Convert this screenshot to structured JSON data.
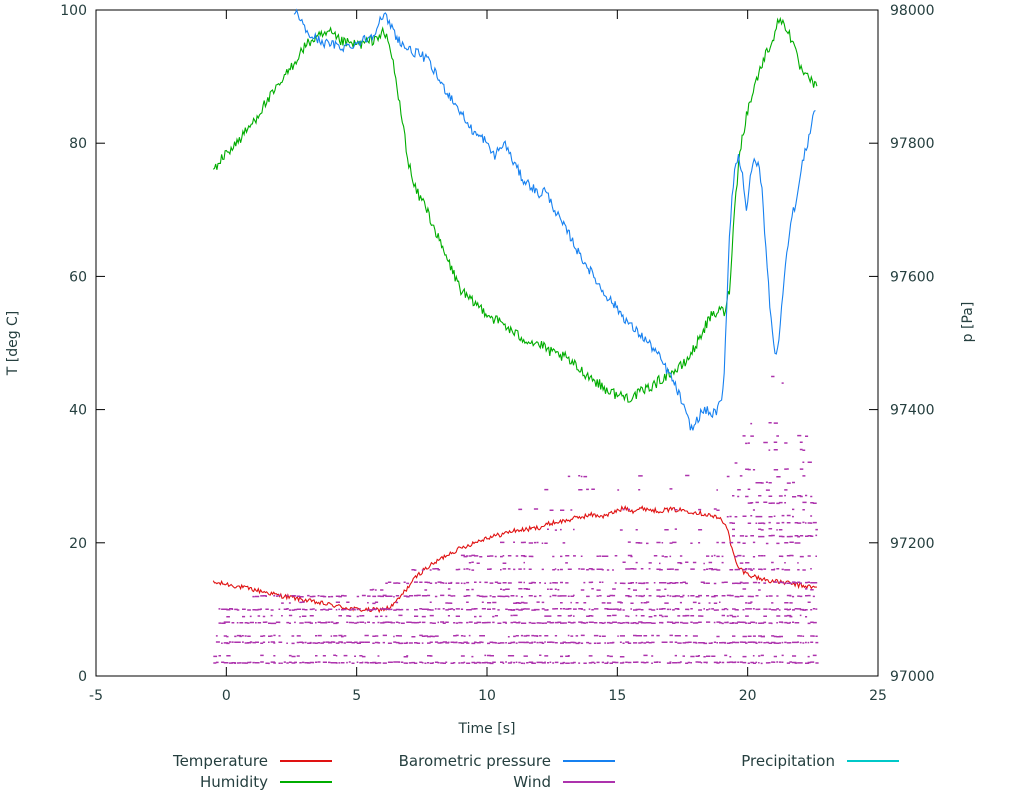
{
  "chart_data": {
    "type": "line",
    "title": "",
    "xlabel": "Time [s]",
    "ylabel_left": "T [deg C]",
    "ylabel_right": "p [Pa]",
    "xlim": [
      -5,
      25
    ],
    "ylim_left": [
      0,
      100
    ],
    "ylim_right": [
      97000,
      98000
    ],
    "x_ticks": [
      -5,
      0,
      5,
      10,
      15,
      20,
      25
    ],
    "y_ticks_left": [
      0,
      20,
      40,
      60,
      80,
      100
    ],
    "y_ticks_right": [
      97000,
      97200,
      97400,
      97600,
      97800,
      98000
    ],
    "grid": false,
    "legend_position": "bottom",
    "series": [
      {
        "name": "Temperature",
        "color": "#e01212",
        "axis": "left",
        "noise": 0.35,
        "points": [
          [
            -0.5,
            14
          ],
          [
            0,
            13.8
          ],
          [
            0.5,
            13.4
          ],
          [
            1,
            13
          ],
          [
            1.5,
            12.6
          ],
          [
            2,
            12.1
          ],
          [
            2.5,
            11.8
          ],
          [
            3,
            11.4
          ],
          [
            3.5,
            11
          ],
          [
            4,
            10.7
          ],
          [
            4.5,
            10.3
          ],
          [
            5,
            10
          ],
          [
            5.5,
            9.9
          ],
          [
            6,
            10
          ],
          [
            6.3,
            10.3
          ],
          [
            6.6,
            11.5
          ],
          [
            7,
            13.5
          ],
          [
            7.3,
            15
          ],
          [
            7.6,
            16
          ],
          [
            8,
            17
          ],
          [
            8.5,
            18.3
          ],
          [
            9,
            19.2
          ],
          [
            9.5,
            20
          ],
          [
            10,
            20.8
          ],
          [
            10.5,
            21.2
          ],
          [
            11,
            21.8
          ],
          [
            11.5,
            22
          ],
          [
            12,
            22.3
          ],
          [
            12.5,
            23
          ],
          [
            13,
            23.3
          ],
          [
            13.5,
            23.8
          ],
          [
            14,
            24.2
          ],
          [
            14.5,
            24
          ],
          [
            15,
            24.8
          ],
          [
            15.3,
            25.3
          ],
          [
            15.6,
            24.8
          ],
          [
            16,
            25.2
          ],
          [
            16.5,
            24.8
          ],
          [
            17,
            25
          ],
          [
            17.5,
            24.9
          ],
          [
            18,
            24.6
          ],
          [
            18.5,
            24.2
          ],
          [
            19,
            23.5
          ],
          [
            19.2,
            22.5
          ],
          [
            19.4,
            19
          ],
          [
            19.6,
            16.5
          ],
          [
            19.8,
            15.8
          ],
          [
            20,
            15.3
          ],
          [
            20.5,
            14.6
          ],
          [
            21,
            14.2
          ],
          [
            21.5,
            14
          ],
          [
            22,
            13.6
          ],
          [
            22.4,
            13.4
          ],
          [
            22.7,
            13.2
          ]
        ]
      },
      {
        "name": "Humidity",
        "color": "#00ad00",
        "axis": "left",
        "noise": 0.8,
        "points": [
          [
            -0.5,
            76
          ],
          [
            0,
            78.5
          ],
          [
            0.5,
            80.5
          ],
          [
            1,
            83
          ],
          [
            1.5,
            86
          ],
          [
            2,
            88.5
          ],
          [
            2.5,
            91.5
          ],
          [
            3,
            94.5
          ],
          [
            3.3,
            95.5
          ],
          [
            3.6,
            96
          ],
          [
            4,
            96.5
          ],
          [
            4.3,
            95.5
          ],
          [
            4.6,
            95
          ],
          [
            5,
            94.8
          ],
          [
            5.3,
            95
          ],
          [
            5.6,
            95.5
          ],
          [
            6,
            96.5
          ],
          [
            6.2,
            95.5
          ],
          [
            6.4,
            92
          ],
          [
            6.6,
            87
          ],
          [
            6.8,
            82
          ],
          [
            7,
            77
          ],
          [
            7.2,
            73.5
          ],
          [
            7.4,
            72
          ],
          [
            7.6,
            71
          ],
          [
            8,
            67
          ],
          [
            8.3,
            64
          ],
          [
            8.6,
            61.5
          ],
          [
            9,
            58
          ],
          [
            9.3,
            56.5
          ],
          [
            9.6,
            55.8
          ],
          [
            10,
            54.5
          ],
          [
            10.3,
            53.5
          ],
          [
            10.6,
            53
          ],
          [
            11,
            51.5
          ],
          [
            11.5,
            50.5
          ],
          [
            12,
            49.8
          ],
          [
            12.5,
            48.5
          ],
          [
            13,
            47.8
          ],
          [
            13.5,
            46.2
          ],
          [
            14,
            44.8
          ],
          [
            14.5,
            43.2
          ],
          [
            15,
            42.2
          ],
          [
            15.5,
            41.8
          ],
          [
            16,
            42.8
          ],
          [
            16.5,
            44
          ],
          [
            17,
            45.5
          ],
          [
            17.3,
            46
          ],
          [
            17.6,
            47
          ],
          [
            18,
            49.5
          ],
          [
            18.3,
            52
          ],
          [
            18.6,
            54
          ],
          [
            19,
            55
          ],
          [
            19.1,
            54.5
          ],
          [
            19.3,
            58
          ],
          [
            19.5,
            70
          ],
          [
            19.7,
            79
          ],
          [
            20,
            85
          ],
          [
            20.3,
            89
          ],
          [
            20.6,
            92.5
          ],
          [
            21,
            96
          ],
          [
            21.2,
            98.5
          ],
          [
            21.4,
            98
          ],
          [
            21.6,
            96.5
          ],
          [
            21.8,
            94
          ],
          [
            22,
            91.5
          ],
          [
            22.2,
            90
          ],
          [
            22.4,
            89.5
          ],
          [
            22.7,
            88
          ]
        ]
      },
      {
        "name": "Barometric pressure",
        "color": "#1781f0",
        "axis": "right",
        "noise": 7,
        "points": [
          [
            2.6,
            98000
          ],
          [
            2.8,
            97990
          ],
          [
            3,
            97972
          ],
          [
            3.2,
            97962
          ],
          [
            3.5,
            97956
          ],
          [
            3.8,
            97950
          ],
          [
            4.1,
            97948
          ],
          [
            4.4,
            97944
          ],
          [
            4.7,
            97946
          ],
          [
            5,
            97950
          ],
          [
            5.3,
            97956
          ],
          [
            5.6,
            97962
          ],
          [
            5.9,
            97984
          ],
          [
            6.1,
            97990
          ],
          [
            6.3,
            97978
          ],
          [
            6.5,
            97962
          ],
          [
            6.8,
            97946
          ],
          [
            7.1,
            97938
          ],
          [
            7.4,
            97934
          ],
          [
            7.7,
            97926
          ],
          [
            8,
            97906
          ],
          [
            8.3,
            97886
          ],
          [
            8.6,
            97870
          ],
          [
            9,
            97846
          ],
          [
            9.3,
            97826
          ],
          [
            9.6,
            97812
          ],
          [
            9.9,
            97806
          ],
          [
            10.1,
            97790
          ],
          [
            10.3,
            97782
          ],
          [
            10.5,
            97792
          ],
          [
            10.7,
            97800
          ],
          [
            10.9,
            97780
          ],
          [
            11.1,
            97766
          ],
          [
            11.4,
            97744
          ],
          [
            11.7,
            97736
          ],
          [
            12,
            97722
          ],
          [
            12.2,
            97730
          ],
          [
            12.4,
            97716
          ],
          [
            12.6,
            97700
          ],
          [
            12.9,
            97678
          ],
          [
            13.2,
            97660
          ],
          [
            13.5,
            97636
          ],
          [
            13.8,
            97618
          ],
          [
            14.1,
            97600
          ],
          [
            14.4,
            97580
          ],
          [
            14.7,
            97566
          ],
          [
            15,
            97552
          ],
          [
            15.3,
            97536
          ],
          [
            15.6,
            97522
          ],
          [
            15.9,
            97512
          ],
          [
            16.2,
            97500
          ],
          [
            16.5,
            97486
          ],
          [
            16.8,
            97466
          ],
          [
            17.1,
            97446
          ],
          [
            17.4,
            97420
          ],
          [
            17.6,
            97396
          ],
          [
            17.8,
            97376
          ],
          [
            17.9,
            97370
          ],
          [
            18,
            97380
          ],
          [
            18.2,
            97394
          ],
          [
            18.4,
            97400
          ],
          [
            18.6,
            97392
          ],
          [
            18.8,
            97398
          ],
          [
            19,
            97412
          ],
          [
            19.1,
            97450
          ],
          [
            19.2,
            97560
          ],
          [
            19.3,
            97660
          ],
          [
            19.4,
            97720
          ],
          [
            19.5,
            97760
          ],
          [
            19.65,
            97780
          ],
          [
            19.8,
            97755
          ],
          [
            19.95,
            97700
          ],
          [
            20.1,
            97745
          ],
          [
            20.25,
            97775
          ],
          [
            20.4,
            97770
          ],
          [
            20.55,
            97730
          ],
          [
            20.7,
            97640
          ],
          [
            20.85,
            97560
          ],
          [
            21,
            97500
          ],
          [
            21.1,
            97480
          ],
          [
            21.2,
            97500
          ],
          [
            21.35,
            97580
          ],
          [
            21.5,
            97640
          ],
          [
            21.7,
            97690
          ],
          [
            21.9,
            97720
          ],
          [
            22.1,
            97770
          ],
          [
            22.3,
            97800
          ],
          [
            22.5,
            97840
          ],
          [
            22.65,
            97855
          ]
        ]
      },
      {
        "name": "Wind",
        "color": "#ad33ad",
        "axis": "left",
        "style": "dashes",
        "rows": [
          [
            2,
            -0.5,
            22.7,
            0.9
          ],
          [
            3,
            -0.5,
            22.7,
            0.3
          ],
          [
            5,
            -0.5,
            22.7,
            0.85
          ],
          [
            6,
            -0.4,
            22.7,
            0.35
          ],
          [
            8,
            -0.3,
            22.7,
            0.8
          ],
          [
            9,
            0,
            22.7,
            0.3
          ],
          [
            10,
            -0.3,
            22.7,
            0.75
          ],
          [
            11,
            2,
            22.7,
            0.25
          ],
          [
            12,
            1,
            22.7,
            0.6
          ],
          [
            13,
            5,
            22.5,
            0.2
          ],
          [
            14,
            6,
            22.7,
            0.55
          ],
          [
            16,
            7,
            22.7,
            0.45
          ],
          [
            17,
            9,
            22,
            0.2
          ],
          [
            18,
            9,
            22.7,
            0.4
          ],
          [
            20,
            10,
            22.7,
            0.22
          ],
          [
            22,
            11,
            22.7,
            0.15
          ],
          [
            25,
            11,
            22.7,
            0.12
          ],
          [
            28,
            12,
            22.5,
            0.07
          ],
          [
            30,
            12.5,
            22.5,
            0.07
          ],
          [
            21,
            19.2,
            22.7,
            0.45
          ],
          [
            23,
            19.2,
            22.7,
            0.4
          ],
          [
            24,
            19.2,
            22.7,
            0.4
          ],
          [
            26,
            19.3,
            22.7,
            0.35
          ],
          [
            27,
            19.3,
            22.6,
            0.3
          ],
          [
            29,
            19.3,
            22.6,
            0.3
          ],
          [
            31,
            19.4,
            22.6,
            0.25
          ],
          [
            32,
            19.4,
            22.6,
            0.25
          ],
          [
            34,
            19.5,
            22.5,
            0.2
          ],
          [
            35,
            19.5,
            22.5,
            0.2
          ],
          [
            36,
            19.6,
            22.4,
            0.15
          ],
          [
            38,
            19.6,
            22.3,
            0.12
          ],
          [
            40,
            19.8,
            22.3,
            0.1
          ],
          [
            42,
            20,
            22.2,
            0.08
          ],
          [
            44,
            20.3,
            22,
            0.06
          ],
          [
            45,
            20.5,
            21.8,
            0.05
          ]
        ]
      },
      {
        "name": "Precipitation",
        "color": "#00c8c8",
        "axis": "left",
        "noise": 0,
        "points": []
      }
    ]
  }
}
